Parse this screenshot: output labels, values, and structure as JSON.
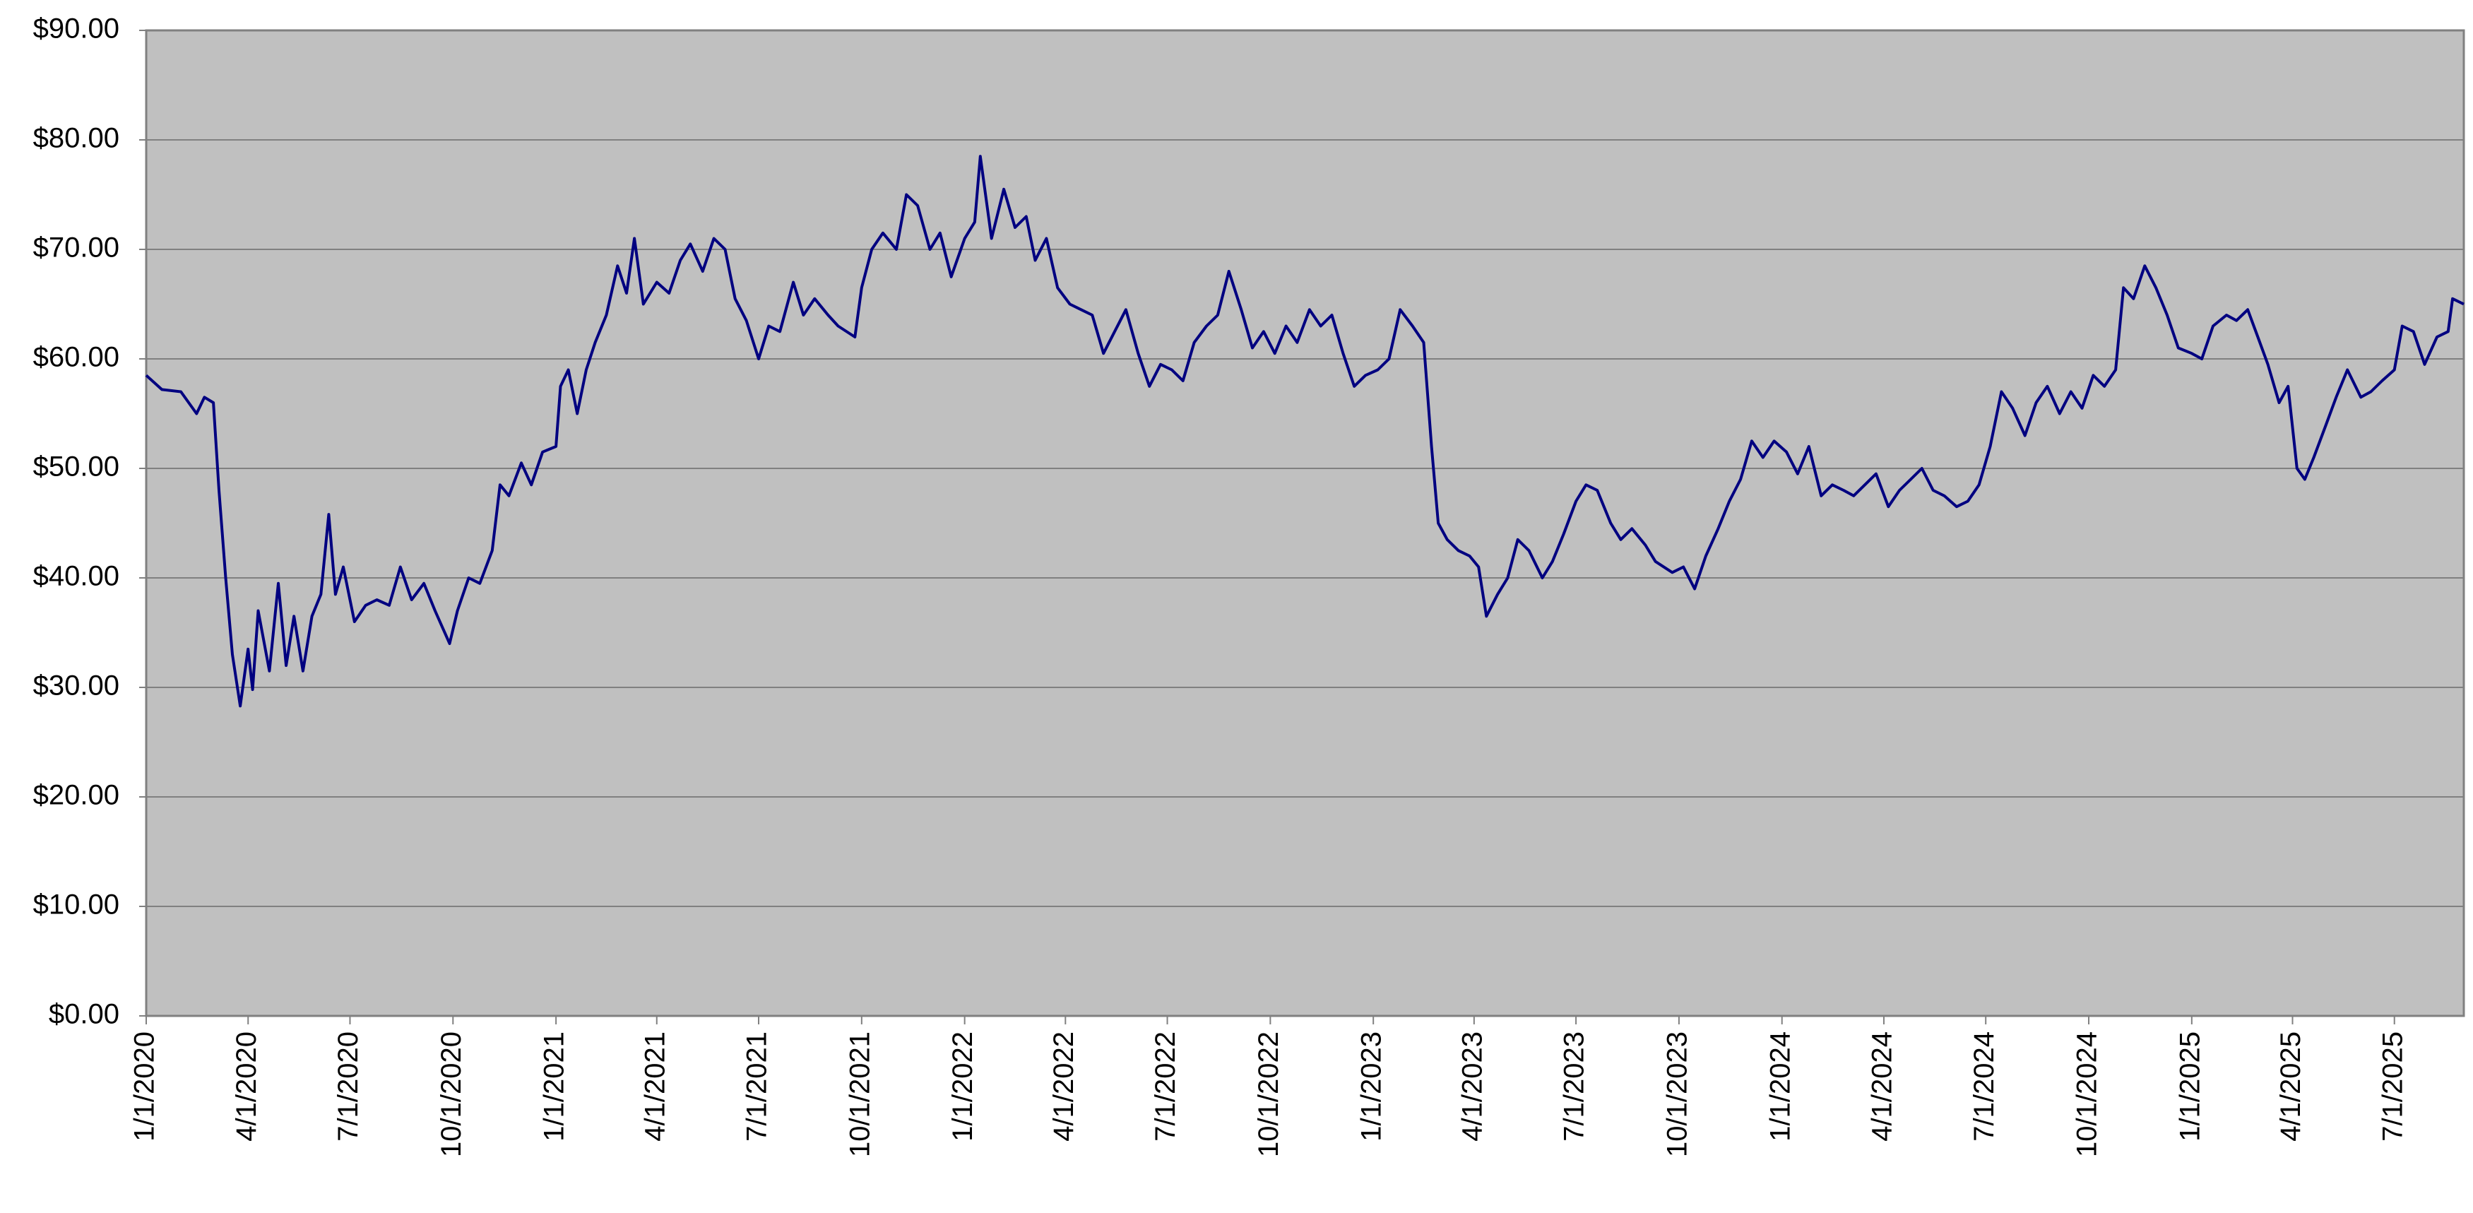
{
  "chart_data": {
    "type": "line",
    "x": [
      "2020-01-01",
      "2020-01-15",
      "2020-02-01",
      "2020-02-15",
      "2020-02-22",
      "2020-03-01",
      "2020-03-06",
      "2020-03-12",
      "2020-03-18",
      "2020-03-25",
      "2020-04-01",
      "2020-04-05",
      "2020-04-10",
      "2020-04-20",
      "2020-04-28",
      "2020-05-05",
      "2020-05-12",
      "2020-05-20",
      "2020-05-28",
      "2020-06-05",
      "2020-06-12",
      "2020-06-18",
      "2020-06-25",
      "2020-07-05",
      "2020-07-15",
      "2020-07-25",
      "2020-08-05",
      "2020-08-15",
      "2020-08-25",
      "2020-09-05",
      "2020-09-15",
      "2020-09-28",
      "2020-10-05",
      "2020-10-15",
      "2020-10-25",
      "2020-11-05",
      "2020-11-12",
      "2020-11-20",
      "2020-12-01",
      "2020-12-10",
      "2020-12-20",
      "2021-01-01",
      "2021-01-05",
      "2021-01-12",
      "2021-01-20",
      "2021-01-28",
      "2021-02-05",
      "2021-02-15",
      "2021-02-25",
      "2021-03-05",
      "2021-03-12",
      "2021-03-20",
      "2021-04-01",
      "2021-04-12",
      "2021-04-22",
      "2021-05-01",
      "2021-05-12",
      "2021-05-22",
      "2021-06-01",
      "2021-06-10",
      "2021-06-20",
      "2021-07-01",
      "2021-07-10",
      "2021-07-20",
      "2021-08-01",
      "2021-08-10",
      "2021-08-20",
      "2021-09-01",
      "2021-09-10",
      "2021-09-25",
      "2021-10-01",
      "2021-10-10",
      "2021-10-20",
      "2021-11-01",
      "2021-11-10",
      "2021-11-20",
      "2021-12-01",
      "2021-12-10",
      "2021-12-20",
      "2022-01-01",
      "2022-01-10",
      "2022-01-15",
      "2022-01-25",
      "2022-02-05",
      "2022-02-15",
      "2022-02-25",
      "2022-03-05",
      "2022-03-15",
      "2022-03-25",
      "2022-04-05",
      "2022-04-15",
      "2022-04-25",
      "2022-05-05",
      "2022-05-15",
      "2022-05-25",
      "2022-06-05",
      "2022-06-15",
      "2022-06-25",
      "2022-07-05",
      "2022-07-15",
      "2022-07-25",
      "2022-08-05",
      "2022-08-15",
      "2022-08-25",
      "2022-09-05",
      "2022-09-15",
      "2022-09-25",
      "2022-10-05",
      "2022-10-15",
      "2022-10-25",
      "2022-11-05",
      "2022-11-15",
      "2022-11-25",
      "2022-12-05",
      "2022-12-15",
      "2022-12-25",
      "2023-01-05",
      "2023-01-15",
      "2023-01-25",
      "2023-02-05",
      "2023-02-15",
      "2023-02-22",
      "2023-02-28",
      "2023-03-08",
      "2023-03-18",
      "2023-03-28",
      "2023-04-05",
      "2023-04-12",
      "2023-04-22",
      "2023-05-01",
      "2023-05-10",
      "2023-05-20",
      "2023-06-01",
      "2023-06-10",
      "2023-06-20",
      "2023-07-01",
      "2023-07-10",
      "2023-07-20",
      "2023-08-01",
      "2023-08-10",
      "2023-08-20",
      "2023-09-01",
      "2023-09-10",
      "2023-09-25",
      "2023-10-05",
      "2023-10-15",
      "2023-10-25",
      "2023-11-05",
      "2023-11-15",
      "2023-11-25",
      "2023-12-05",
      "2023-12-15",
      "2023-12-25",
      "2024-01-05",
      "2024-01-15",
      "2024-01-25",
      "2024-02-05",
      "2024-02-15",
      "2024-02-25",
      "2024-03-05",
      "2024-03-15",
      "2024-03-25",
      "2024-04-05",
      "2024-04-15",
      "2024-04-25",
      "2024-05-05",
      "2024-05-15",
      "2024-05-25",
      "2024-06-05",
      "2024-06-15",
      "2024-06-25",
      "2024-07-05",
      "2024-07-15",
      "2024-07-25",
      "2024-08-05",
      "2024-08-15",
      "2024-08-25",
      "2024-09-05",
      "2024-09-15",
      "2024-09-25",
      "2024-10-05",
      "2024-10-15",
      "2024-10-25",
      "2024-11-01",
      "2024-11-10",
      "2024-11-20",
      "2024-11-30",
      "2024-12-10",
      "2024-12-20",
      "2025-01-01",
      "2025-01-10",
      "2025-01-20",
      "2025-02-01",
      "2025-02-10",
      "2025-02-20",
      "2025-03-01",
      "2025-03-10",
      "2025-03-20",
      "2025-03-28",
      "2025-04-05",
      "2025-04-12",
      "2025-04-20",
      "2025-05-01",
      "2025-05-10",
      "2025-05-20",
      "2025-06-01",
      "2025-06-10",
      "2025-06-20",
      "2025-07-01",
      "2025-07-08",
      "2025-07-18",
      "2025-07-28",
      "2025-08-08",
      "2025-08-18",
      "2025-08-22",
      "2025-09-01"
    ],
    "series": [
      {
        "color": "#000080",
        "values": [
          58.5,
          57.2,
          57.0,
          55.0,
          56.5,
          56.0,
          48.0,
          40.0,
          33.0,
          28.3,
          33.5,
          29.8,
          37.0,
          31.5,
          39.5,
          32.0,
          36.5,
          31.5,
          36.5,
          38.5,
          45.8,
          38.5,
          41.0,
          36.0,
          37.5,
          38.0,
          37.5,
          41.0,
          38.0,
          39.5,
          37.0,
          34.0,
          37.0,
          40.0,
          39.5,
          42.5,
          48.5,
          47.5,
          50.5,
          48.5,
          51.5,
          52.0,
          57.5,
          59.0,
          55.0,
          59.0,
          61.5,
          64.0,
          68.5,
          66.0,
          71.0,
          65.0,
          67.0,
          66.0,
          69.0,
          70.5,
          68.0,
          71.0,
          70.0,
          65.5,
          63.5,
          60.0,
          63.0,
          62.5,
          67.0,
          64.0,
          65.5,
          64.0,
          63.0,
          62.0,
          66.5,
          70.0,
          71.5,
          70.0,
          75.0,
          74.0,
          70.0,
          71.5,
          67.5,
          71.0,
          72.5,
          78.5,
          71.0,
          75.5,
          72.0,
          73.0,
          69.0,
          71.0,
          66.5,
          65.0,
          64.5,
          64.0,
          60.5,
          62.5,
          64.5,
          60.5,
          57.5,
          59.5,
          59.0,
          58.0,
          61.5,
          63.0,
          64.0,
          68.0,
          64.5,
          61.0,
          62.5,
          60.5,
          63.0,
          61.5,
          64.5,
          63.0,
          64.0,
          60.5,
          57.5,
          58.5,
          59.0,
          60.0,
          64.5,
          63.0,
          61.5,
          52.0,
          45.0,
          43.5,
          42.5,
          42.0,
          41.0,
          36.5,
          38.5,
          40.0,
          43.5,
          42.5,
          40.0,
          41.5,
          44.0,
          47.0,
          48.5,
          48.0,
          45.0,
          43.5,
          44.5,
          43.0,
          41.5,
          40.5,
          41.0,
          39.0,
          42.0,
          44.5,
          47.0,
          49.0,
          52.5,
          51.0,
          52.5,
          51.5,
          49.5,
          52.0,
          47.5,
          48.5,
          48.0,
          47.5,
          48.5,
          49.5,
          46.5,
          48.0,
          49.0,
          50.0,
          48.0,
          47.5,
          46.5,
          47.0,
          48.5,
          52.0,
          57.0,
          55.5,
          53.0,
          56.0,
          57.5,
          55.0,
          57.0,
          55.5,
          58.5,
          57.5,
          59.0,
          66.5,
          65.5,
          68.5,
          66.5,
          64.0,
          61.0,
          60.5,
          60.0,
          63.0,
          64.0,
          63.5,
          64.5,
          62.0,
          59.5,
          56.0,
          57.5,
          50.0,
          49.0,
          51.0,
          54.0,
          56.5,
          59.0,
          56.5,
          57.0,
          58.0,
          59.0,
          63.0,
          62.5,
          59.5,
          62.0,
          62.5,
          65.5,
          65.0
        ]
      }
    ],
    "xlim": [
      "2020-01-01",
      "2025-09-01"
    ],
    "xticks": [
      {
        "value": "2020-01-01",
        "label": "1/1/2020"
      },
      {
        "value": "2020-04-01",
        "label": "4/1/2020"
      },
      {
        "value": "2020-07-01",
        "label": "7/1/2020"
      },
      {
        "value": "2020-10-01",
        "label": "10/1/2020"
      },
      {
        "value": "2021-01-01",
        "label": "1/1/2021"
      },
      {
        "value": "2021-04-01",
        "label": "4/1/2021"
      },
      {
        "value": "2021-07-01",
        "label": "7/1/2021"
      },
      {
        "value": "2021-10-01",
        "label": "10/1/2021"
      },
      {
        "value": "2022-01-01",
        "label": "1/1/2022"
      },
      {
        "value": "2022-04-01",
        "label": "4/1/2022"
      },
      {
        "value": "2022-07-01",
        "label": "7/1/2022"
      },
      {
        "value": "2022-10-01",
        "label": "10/1/2022"
      },
      {
        "value": "2023-01-01",
        "label": "1/1/2023"
      },
      {
        "value": "2023-04-01",
        "label": "4/1/2023"
      },
      {
        "value": "2023-07-01",
        "label": "7/1/2023"
      },
      {
        "value": "2023-10-01",
        "label": "10/1/2023"
      },
      {
        "value": "2024-01-01",
        "label": "1/1/2024"
      },
      {
        "value": "2024-04-01",
        "label": "4/1/2024"
      },
      {
        "value": "2024-07-01",
        "label": "7/1/2024"
      },
      {
        "value": "2024-10-01",
        "label": "10/1/2024"
      },
      {
        "value": "2025-01-01",
        "label": "1/1/2025"
      },
      {
        "value": "2025-04-01",
        "label": "4/1/2025"
      },
      {
        "value": "2025-07-01",
        "label": "7/1/2025"
      }
    ],
    "ylim": [
      0,
      90
    ],
    "yticks": [
      {
        "value": 0,
        "label": "$0.00"
      },
      {
        "value": 10,
        "label": "$10.00"
      },
      {
        "value": 20,
        "label": "$20.00"
      },
      {
        "value": 30,
        "label": "$30.00"
      },
      {
        "value": 40,
        "label": "$40.00"
      },
      {
        "value": 50,
        "label": "$50.00"
      },
      {
        "value": 60,
        "label": "$60.00"
      },
      {
        "value": 70,
        "label": "$70.00"
      },
      {
        "value": 80,
        "label": "$80.00"
      },
      {
        "value": 90,
        "label": "$90.00"
      }
    ],
    "grid": true,
    "background": "#c0c0c0"
  }
}
